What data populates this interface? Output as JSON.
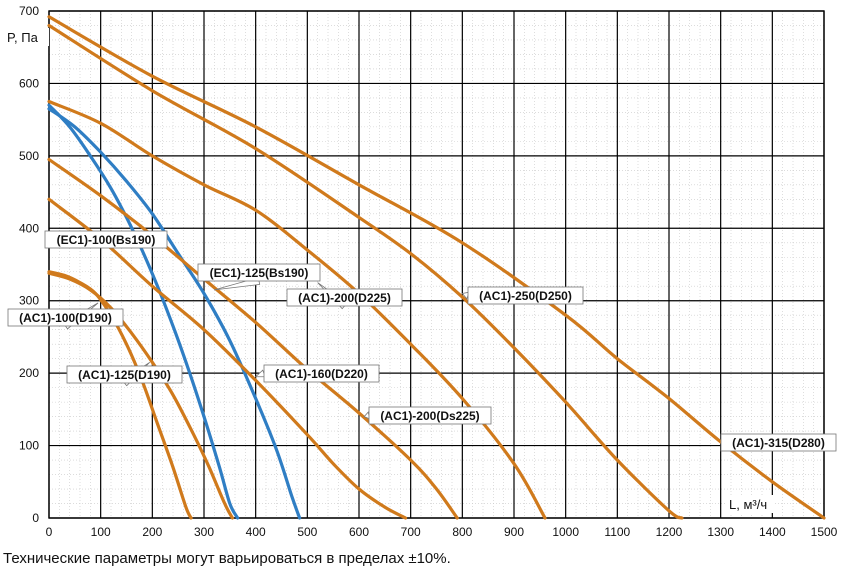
{
  "chart_data": {
    "type": "line",
    "xlabel": "L, м³/ч",
    "ylabel": "P, Па",
    "xlim": [
      0,
      1500
    ],
    "ylim": [
      0,
      700
    ],
    "xticks": [
      0,
      100,
      200,
      300,
      400,
      500,
      600,
      700,
      800,
      900,
      1000,
      1100,
      1200,
      1300,
      1400,
      1500
    ],
    "yticks": [
      0,
      100,
      200,
      300,
      400,
      500,
      600,
      700
    ],
    "grid": {
      "major": true,
      "minor_x_step": 20,
      "minor_y_step": 20
    },
    "colors": {
      "ac": "#d07a1c",
      "ec": "#2f7ec4",
      "grid": "#000000"
    },
    "series": [
      {
        "name": "(AC1)-100(D190)",
        "color": "#d07a1c",
        "x": [
          0,
          30,
          60,
          90,
          120,
          150,
          180,
          210,
          240,
          265,
          275
        ],
        "y": [
          340,
          335,
          325,
          310,
          280,
          240,
          190,
          130,
          70,
          15,
          0
        ],
        "label_anchor": [
          95,
          297
        ]
      },
      {
        "name": "(AC1)-125(D190)",
        "color": "#d07a1c",
        "x": [
          0,
          40,
          80,
          120,
          160,
          200,
          240,
          280,
          310,
          340,
          355
        ],
        "y": [
          338,
          330,
          315,
          290,
          255,
          215,
          170,
          115,
          70,
          20,
          0
        ],
        "label_anchor": [
          195,
          215
        ]
      },
      {
        "name": "(EC1)-100(Bs190)",
        "color": "#2f7ec4",
        "x": [
          0,
          40,
          80,
          120,
          150,
          180,
          210,
          240,
          270,
          300,
          330,
          350,
          365
        ],
        "y": [
          570,
          540,
          500,
          455,
          415,
          370,
          320,
          265,
          205,
          140,
          70,
          20,
          0
        ],
        "label_anchor": [
          130,
          390
        ]
      },
      {
        "name": "(EC1)-125(Bs190)",
        "color": "#2f7ec4",
        "x": [
          0,
          50,
          100,
          150,
          200,
          250,
          300,
          350,
          400,
          440,
          470,
          485
        ],
        "y": [
          565,
          540,
          505,
          465,
          420,
          365,
          310,
          245,
          165,
          95,
          30,
          0
        ],
        "label_anchor": [
          320,
          315
        ]
      },
      {
        "name": "(AC1)-160(D220)",
        "color": "#d07a1c",
        "x": [
          0,
          100,
          200,
          300,
          400,
          500,
          550,
          600,
          650,
          690
        ],
        "y": [
          440,
          385,
          320,
          260,
          190,
          115,
          75,
          40,
          15,
          0
        ],
        "label_anchor": [
          400,
          195
        ]
      },
      {
        "name": "(AC1)-200(Ds225)",
        "color": "#d07a1c",
        "x": [
          0,
          100,
          200,
          300,
          400,
          500,
          600,
          700,
          750,
          790
        ],
        "y": [
          495,
          445,
          390,
          330,
          270,
          205,
          145,
          80,
          40,
          0
        ],
        "label_anchor": [
          610,
          140
        ]
      },
      {
        "name": "(AC1)-200(D225)",
        "color": "#d07a1c",
        "x": [
          0,
          100,
          200,
          300,
          400,
          500,
          600,
          700,
          800,
          900,
          960
        ],
        "y": [
          575,
          545,
          500,
          460,
          425,
          370,
          310,
          240,
          165,
          75,
          0
        ],
        "label_anchor": [
          520,
          325
        ]
      },
      {
        "name": "(AC1)-250(D250)",
        "color": "#d07a1c",
        "x": [
          0,
          200,
          400,
          600,
          700,
          800,
          900,
          1000,
          1100,
          1200,
          1225
        ],
        "y": [
          680,
          590,
          510,
          415,
          365,
          305,
          235,
          160,
          80,
          10,
          0
        ],
        "label_anchor": [
          800,
          310
        ]
      },
      {
        "name": "(AC1)-315(D280)",
        "color": "#d07a1c",
        "x": [
          0,
          200,
          400,
          600,
          800,
          1000,
          1100,
          1200,
          1300,
          1400,
          1500
        ],
        "y": [
          692,
          610,
          540,
          460,
          380,
          280,
          220,
          165,
          105,
          50,
          0
        ],
        "label_anchor": [
          1345,
          95
        ]
      }
    ],
    "labels": [
      {
        "text": "(EC1)-100(Bs190)",
        "series": "(EC1)-100(Bs190)"
      },
      {
        "text": "(EC1)-125(Bs190)",
        "series": "(EC1)-125(Bs190)"
      },
      {
        "text": "(AC1)-200(D225)",
        "series": "(AC1)-200(D225)"
      },
      {
        "text": "(AC1)-250(D250)",
        "series": "(AC1)-250(D250)"
      },
      {
        "text": "(AC1)-100(D190)",
        "series": "(AC1)-100(D190)"
      },
      {
        "text": "(AC1)-125(D190)",
        "series": "(AC1)-125(D190)"
      },
      {
        "text": "(AC1)-160(D220)",
        "series": "(AC1)-160(D220)"
      },
      {
        "text": "(AC1)-200(Ds225)",
        "series": "(AC1)-200(Ds225)"
      },
      {
        "text": "(AC1)-315(D280)",
        "series": "(AC1)-315(D280)"
      }
    ]
  },
  "footnote": "Технические параметры могут варьироваться в пределах ±10%."
}
